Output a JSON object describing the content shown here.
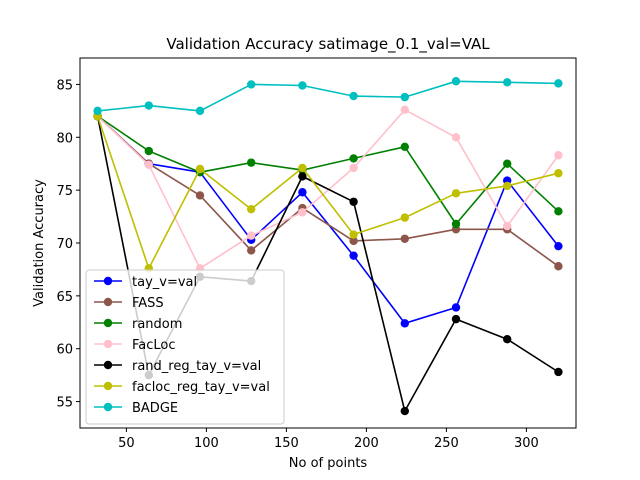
{
  "chart_data": {
    "type": "line",
    "title": "Validation Accuracy satimage_0.1_val=VAL",
    "xlabel": "No of points",
    "ylabel": "Validation Accuracy",
    "xlim": [
      21,
      331
    ],
    "ylim": [
      52.5,
      87.5
    ],
    "xticks": [
      50,
      100,
      150,
      200,
      250,
      300
    ],
    "yticks": [
      55,
      60,
      65,
      70,
      75,
      80,
      85
    ],
    "grid": false,
    "legend_position": "lower-left",
    "x": [
      32,
      64,
      96,
      128,
      160,
      192,
      224,
      256,
      288,
      320
    ],
    "series": [
      {
        "name": "tay_v=val",
        "color": "#0000ff",
        "values": [
          82.0,
          77.5,
          76.7,
          70.3,
          74.8,
          68.8,
          62.4,
          63.9,
          75.9,
          69.7
        ]
      },
      {
        "name": "FASS",
        "color": "#8c564b",
        "values": [
          82.0,
          77.5,
          74.5,
          69.3,
          73.3,
          70.2,
          70.4,
          71.3,
          71.3,
          67.8
        ]
      },
      {
        "name": "random",
        "color": "#008000",
        "values": [
          82.0,
          78.7,
          76.7,
          77.6,
          76.9,
          78.0,
          79.1,
          71.8,
          77.5,
          73.0
        ]
      },
      {
        "name": "FacLoc",
        "color": "#ffc0cb",
        "values": [
          82.0,
          77.4,
          67.6,
          70.7,
          72.9,
          77.1,
          82.6,
          80.0,
          71.6,
          78.3
        ]
      },
      {
        "name": "rand_reg_tay_v=val",
        "color": "#000000",
        "values": [
          82.0,
          57.5,
          66.8,
          66.4,
          76.3,
          73.9,
          54.1,
          62.8,
          60.9,
          57.8
        ]
      },
      {
        "name": "facloc_reg_tay_v=val",
        "color": "#bfbf00",
        "values": [
          82.0,
          67.6,
          77.0,
          73.2,
          77.1,
          70.8,
          72.4,
          74.7,
          75.4,
          76.6
        ]
      },
      {
        "name": "BADGE",
        "color": "#00bfbf",
        "values": [
          82.5,
          83.0,
          82.5,
          85.0,
          84.9,
          83.9,
          83.8,
          85.3,
          85.2,
          85.1
        ]
      }
    ]
  }
}
